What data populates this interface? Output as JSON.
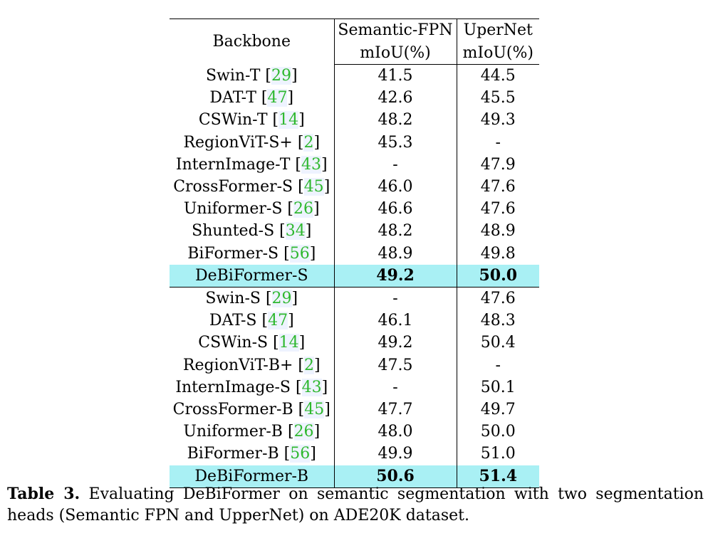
{
  "table": {
    "header": {
      "backbone": "Backbone",
      "col1_line1": "Semantic-FPN",
      "col1_line2": "mIoU(%)",
      "col2_line1": "UperNet",
      "col2_line2": "mIoU(%)"
    },
    "rows": [
      {
        "name": "Swin-T",
        "ref": "29",
        "fpn": "41.5",
        "upernet": "44.5"
      },
      {
        "name": "DAT-T",
        "ref": "47",
        "fpn": "42.6",
        "upernet": "45.5"
      },
      {
        "name": "CSWin-T",
        "ref": "14",
        "fpn": "48.2",
        "upernet": "49.3"
      },
      {
        "name": "RegionViT-S+",
        "ref": "2",
        "fpn": "45.3",
        "upernet": "-"
      },
      {
        "name": "InternImage-T",
        "ref": "43",
        "fpn": "-",
        "upernet": "47.9"
      },
      {
        "name": "CrossFormer-S",
        "ref": "45",
        "fpn": "46.0",
        "upernet": "47.6"
      },
      {
        "name": "Uniformer-S",
        "ref": "26",
        "fpn": "46.6",
        "upernet": "47.6"
      },
      {
        "name": "Shunted-S",
        "ref": "34",
        "fpn": "48.2",
        "upernet": "48.9"
      },
      {
        "name": "BiFormer-S",
        "ref": "56",
        "fpn": "48.9",
        "upernet": "49.8"
      },
      {
        "name": "DeBiFormer-S",
        "fpn": "49.2",
        "upernet": "50.0"
      },
      {
        "name": "Swin-S",
        "ref": "29",
        "fpn": "-",
        "upernet": "47.6"
      },
      {
        "name": "DAT-S",
        "ref": "47",
        "fpn": "46.1",
        "upernet": "48.3"
      },
      {
        "name": "CSWin-S",
        "ref": "14",
        "fpn": "49.2",
        "upernet": "50.4"
      },
      {
        "name": "RegionViT-B+",
        "ref": "2",
        "fpn": "47.5",
        "upernet": "-"
      },
      {
        "name": "InternImage-S",
        "ref": "43",
        "fpn": "-",
        "upernet": "50.1"
      },
      {
        "name": "CrossFormer-B",
        "ref": "45",
        "fpn": "47.7",
        "upernet": "49.7"
      },
      {
        "name": "Uniformer-B",
        "ref": "26",
        "fpn": "48.0",
        "upernet": "50.0"
      },
      {
        "name": "BiFormer-B",
        "ref": "56",
        "fpn": "49.9",
        "upernet": "51.0"
      },
      {
        "name": "DeBiFormer-B",
        "fpn": "50.6",
        "upernet": "51.4"
      }
    ]
  },
  "caption": {
    "label": "Table 3.",
    "text": "Evaluating DeBiFormer on semantic segmentation with two segmentation heads (Semantic FPN and UpperNet) on ADE20K dataset."
  }
}
